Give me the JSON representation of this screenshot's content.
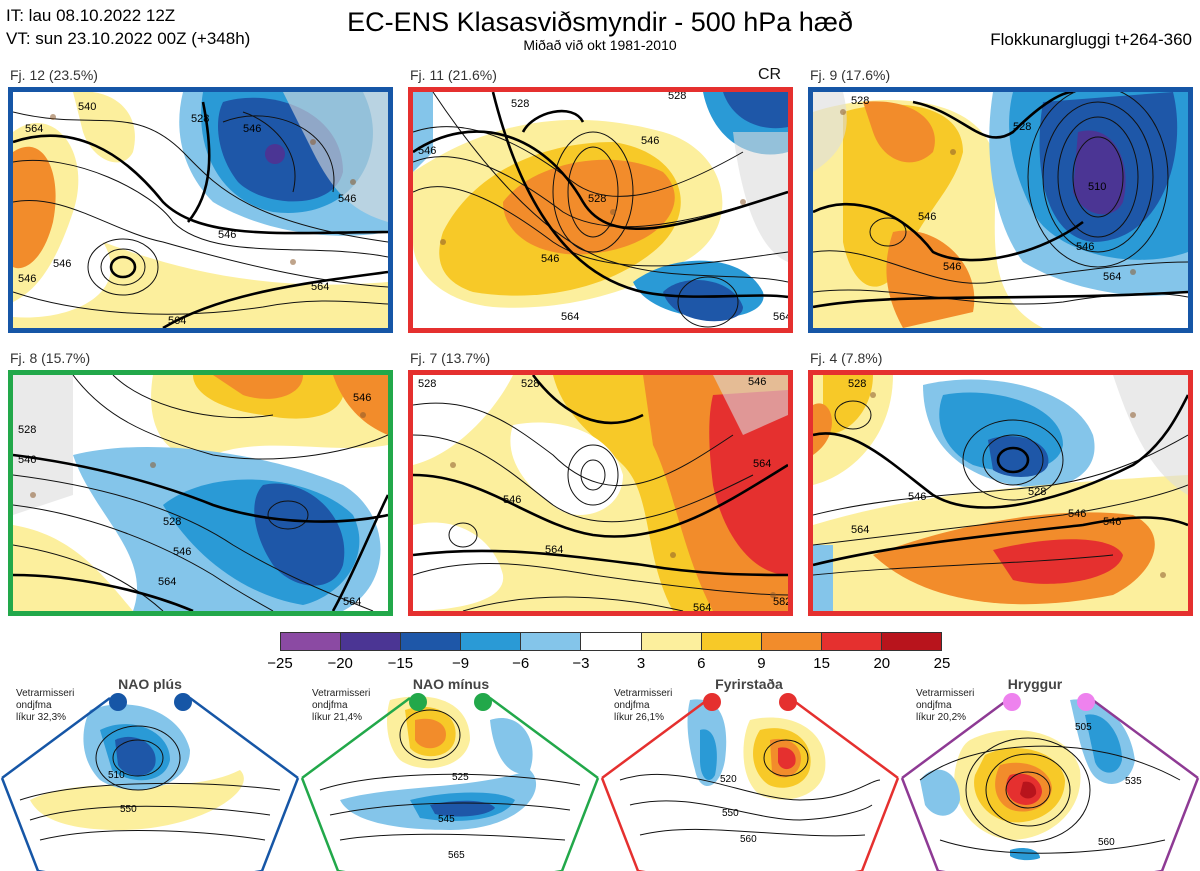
{
  "header": {
    "init_time": "IT: lau 08.10.2022 12Z",
    "valid_time": "VT: sun 23.10.2022 00Z  (+348h)",
    "title": "EC-ENS Klasasviðsmyndir - 500 hPa hæð",
    "subtitle": "Miðað við okt 1981-2010",
    "window": "Flokkunargluggi t+264-360"
  },
  "panels": [
    {
      "label": "Fj. 12 (23.5%)",
      "border_color": "#1656a6",
      "contour_labels": [
        "540",
        "564",
        "546",
        "528",
        "546",
        "546",
        "564",
        "564",
        "546",
        "546"
      ]
    },
    {
      "label": "Fj. 11 (21.6%)",
      "border_color": "#e5302f",
      "regime_tag": "CR",
      "contour_labels": [
        "528",
        "546",
        "546",
        "528",
        "546",
        "564",
        "528",
        "564"
      ]
    },
    {
      "label": "Fj. 9 (17.6%)",
      "border_color": "#1656a6",
      "contour_labels": [
        "528",
        "510",
        "546",
        "546",
        "564",
        "528",
        "546"
      ]
    },
    {
      "label": "Fj. 8 (15.7%)",
      "border_color": "#22a84a",
      "contour_labels": [
        "546",
        "528",
        "546",
        "564",
        "564",
        "546",
        "528"
      ]
    },
    {
      "label": "Fj. 7 (13.7%)",
      "border_color": "#e5302f",
      "contour_labels": [
        "528",
        "528",
        "546",
        "564",
        "564",
        "564",
        "582",
        "546"
      ]
    },
    {
      "label": "Fj. 4 (7.8%)",
      "border_color": "#e5302f",
      "contour_labels": [
        "528",
        "546",
        "528",
        "546",
        "564",
        "546"
      ]
    }
  ],
  "colorbar": {
    "colors": [
      "#8b4aa3",
      "#4b3594",
      "#1e57a8",
      "#2a9ad6",
      "#84c5ea",
      "#ffffff",
      "#fcef9d",
      "#f7c928",
      "#f28c2b",
      "#e5302f",
      "#b8141c"
    ],
    "ticks": [
      "−25",
      "−20",
      "−15",
      "−9",
      "−6",
      "−3",
      "3",
      "6",
      "9",
      "15",
      "20",
      "25"
    ]
  },
  "regimes": [
    {
      "title": "NAO plús",
      "note_lines": [
        "Vetrarmisseri",
        "ondjfma",
        "líkur 32,3%"
      ],
      "color": "#1656a6",
      "dot_color": "#1656a6",
      "contour_labels": [
        "510",
        "550"
      ]
    },
    {
      "title": "NAO mínus",
      "note_lines": [
        "Vetrarmisseri",
        "ondjfma",
        "líkur 21,4%"
      ],
      "color": "#22a84a",
      "dot_color": "#22a84a",
      "contour_labels": [
        "525",
        "545",
        "565"
      ]
    },
    {
      "title": "Fyrirstaða",
      "note_lines": [
        "Vetrarmisseri",
        "ondjfma",
        "líkur 26,1%"
      ],
      "color": "#e5302f",
      "dot_color": "#e5302f",
      "contour_labels": [
        "520",
        "550",
        "560"
      ]
    },
    {
      "title": "Hryggur",
      "note_lines": [
        "Vetrarmisseri",
        "ondjfma",
        "líkur 20,2%"
      ],
      "color": "#8e3a94",
      "dot_color": "#ee82ee",
      "contour_labels": [
        "505",
        "535",
        "560"
      ]
    }
  ]
}
